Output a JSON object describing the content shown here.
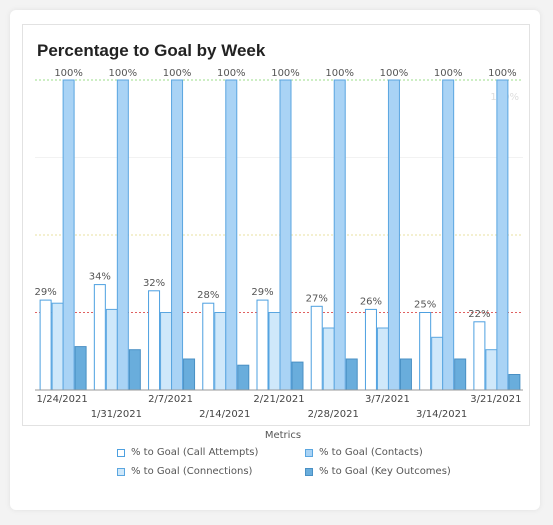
{
  "chart_data": {
    "type": "bar",
    "title": "Percentage to Goal by Week",
    "categories": [
      "1/24/2021",
      "1/31/2021",
      "2/7/2021",
      "2/14/2021",
      "2/21/2021",
      "2/28/2021",
      "3/7/2021",
      "3/14/2021",
      "3/21/2021"
    ],
    "series": [
      {
        "name": "% to Goal (Call Attempts)",
        "values": [
          29,
          34,
          32,
          28,
          29,
          27,
          26,
          25,
          22
        ],
        "color": "#ffffff",
        "border": "#4da0e0"
      },
      {
        "name": "% to Goal (Connections)",
        "values": [
          28,
          26,
          25,
          25,
          25,
          20,
          20,
          17,
          13
        ],
        "color": "#cfe8fa",
        "border": "#5aa6e0"
      },
      {
        "name": "% to Goal (Contacts)",
        "values": [
          100,
          100,
          100,
          100,
          100,
          100,
          100,
          100,
          100
        ],
        "color": "#a9d3f5",
        "border": "#5aa6e0"
      },
      {
        "name": "% to Goal (Key Outcomes)",
        "values": [
          14,
          13,
          10,
          8,
          9,
          10,
          10,
          10,
          5
        ],
        "color": "#69addc",
        "border": "#4a90c4"
      }
    ],
    "data_labels": {
      "call_attempts": [
        "29%",
        "34%",
        "32%",
        "28%",
        "29%",
        "27%",
        "26%",
        "25%",
        "22%"
      ],
      "contacts": [
        "100%",
        "100%",
        "100%",
        "100%",
        "100%",
        "100%",
        "100%",
        "100%",
        "100%"
      ]
    },
    "ylim": [
      0,
      100
    ],
    "reference_lines": [
      {
        "value": 100,
        "color": "#9bdc8a"
      },
      {
        "value": 50,
        "color": "#e8e0a0"
      },
      {
        "value": 25,
        "color": "#e06060"
      }
    ],
    "faint_label": "100%",
    "legend_title": "Metrics",
    "legend_position": "bottom"
  }
}
